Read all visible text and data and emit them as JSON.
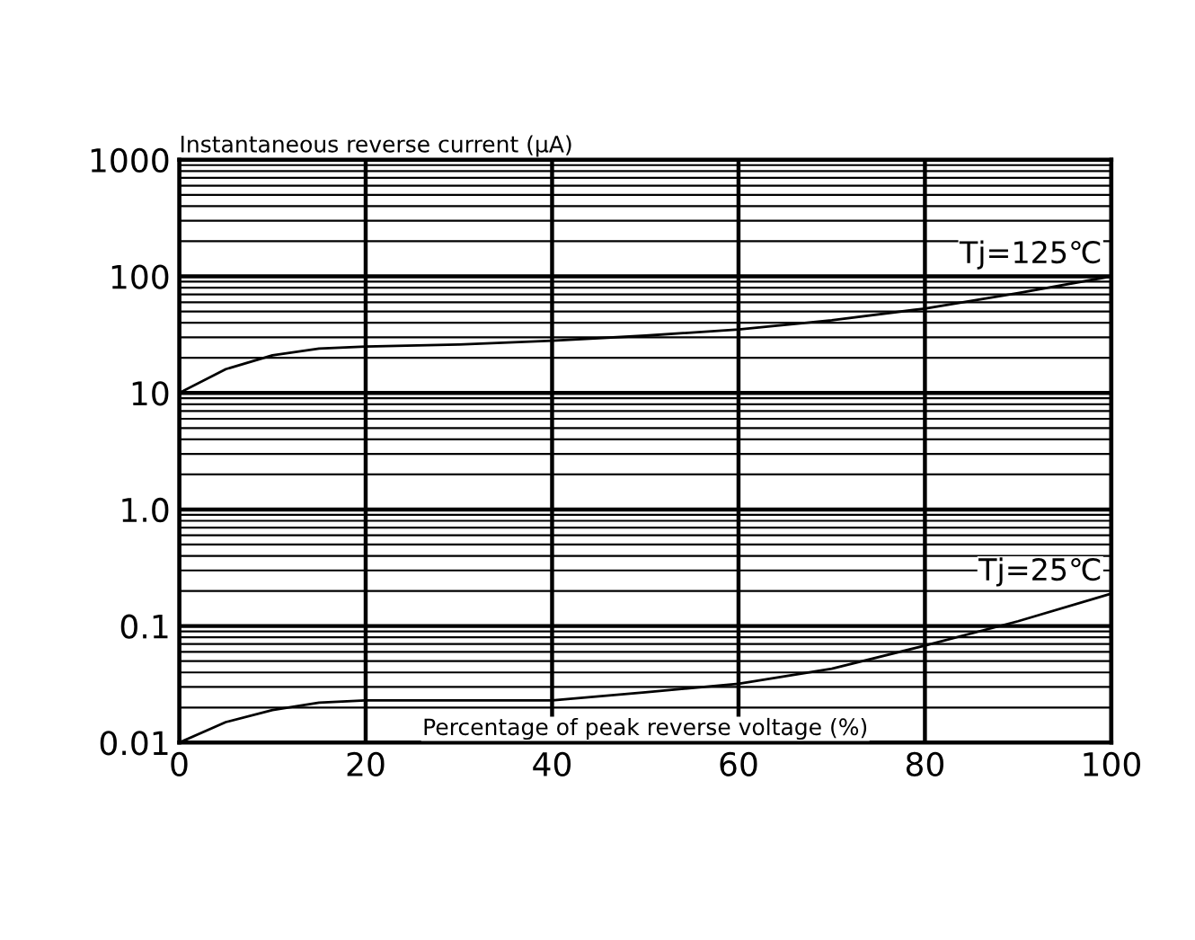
{
  "chart_data": {
    "type": "line",
    "xlabel": "Percentage of peak reverse voltage (%)",
    "ylabel": "Instantaneous reverse current (μA)",
    "xlim": [
      0,
      100
    ],
    "xticks": [
      0,
      20,
      40,
      60,
      80,
      100
    ],
    "ylim": [
      0.01,
      1000
    ],
    "log": "y",
    "yticks": [
      {
        "value": 0.01,
        "label": "0.01"
      },
      {
        "value": 0.1,
        "label": "0.1"
      },
      {
        "value": 1,
        "label": "1.0"
      },
      10,
      100,
      1000
    ],
    "grid": true,
    "marker": "none",
    "line_style": "solid",
    "series": [
      {
        "name": "Tj=125℃",
        "color": "#000000",
        "x": [
          0,
          5,
          10,
          15,
          20,
          30,
          40,
          50,
          60,
          70,
          80,
          90,
          100
        ],
        "values": [
          10,
          16,
          21,
          24,
          25,
          26,
          28,
          31,
          35,
          42,
          53,
          72,
          100
        ]
      },
      {
        "name": "Tj=25℃",
        "color": "#000000",
        "x": [
          0,
          5,
          10,
          15,
          20,
          30,
          40,
          50,
          60,
          70,
          80,
          90,
          100
        ],
        "values": [
          0.01,
          0.015,
          0.019,
          0.022,
          0.023,
          0.023,
          0.023,
          0.027,
          0.032,
          0.043,
          0.068,
          0.11,
          0.19
        ]
      }
    ]
  }
}
